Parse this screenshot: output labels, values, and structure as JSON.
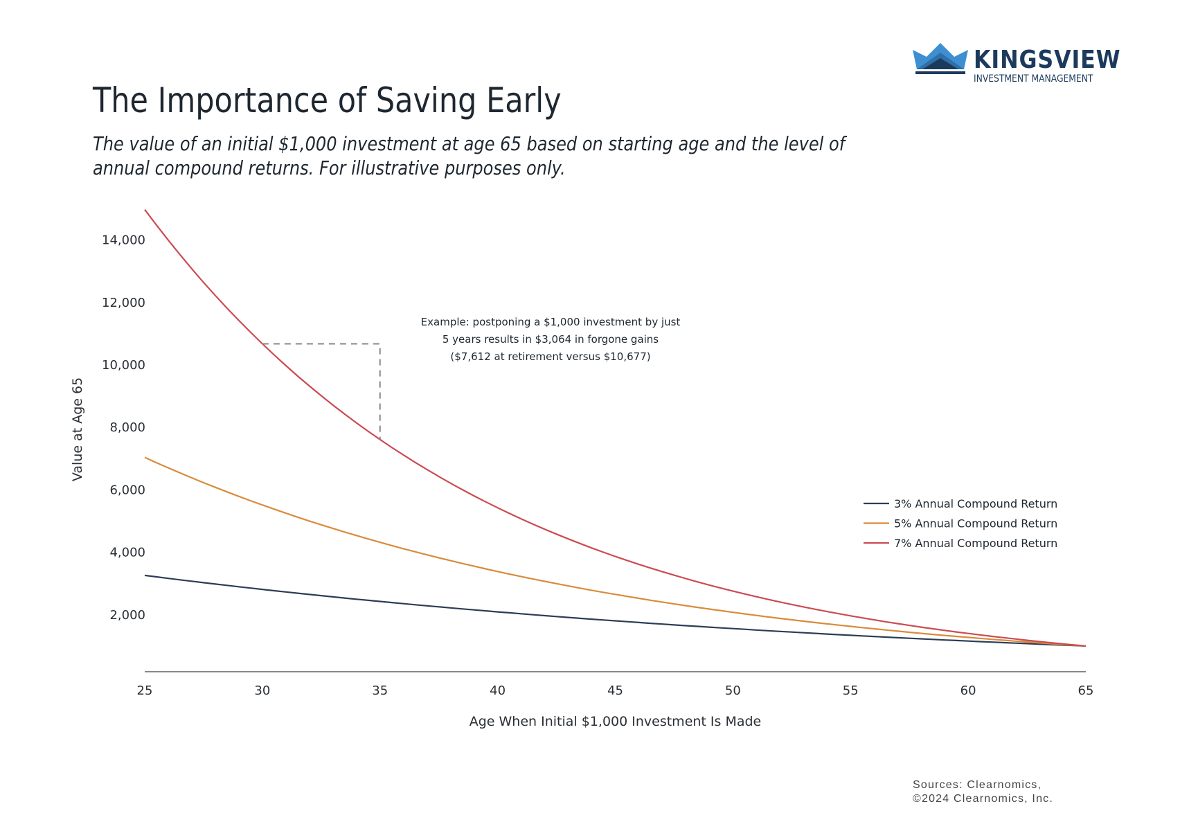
{
  "brand": {
    "name": "KINGSVIEW",
    "tagline": "INVESTMENT MANAGEMENT",
    "colors": {
      "dark": "#1b3a5c",
      "mid": "#2f6fa8",
      "light": "#3d8fd1"
    }
  },
  "header": {
    "title": "The Importance of Saving Early",
    "subtitle": "The value of an initial $1,000 investment at age 65 based on starting age and the level of annual compound returns. For illustrative purposes only."
  },
  "chart_data": {
    "type": "line",
    "title": "The Importance of Saving Early",
    "xlabel": "Age When Initial $1,000 Investment Is Made",
    "ylabel": "Value at Age 65",
    "xlim": [
      25,
      65
    ],
    "ylim": [
      0,
      15000
    ],
    "x_ticks": [
      25,
      30,
      35,
      40,
      45,
      50,
      55,
      60,
      65
    ],
    "y_ticks": [
      2000,
      4000,
      6000,
      8000,
      10000,
      12000,
      14000
    ],
    "y_tick_labels": [
      "2,000",
      "4,000",
      "6,000",
      "8,000",
      "10,000",
      "12,000",
      "14,000"
    ],
    "grid": false,
    "legend_position": "right",
    "x": [
      25,
      27,
      29,
      31,
      33,
      35,
      37,
      39,
      41,
      43,
      45,
      47,
      49,
      51,
      53,
      55,
      57,
      59,
      61,
      63,
      65
    ],
    "series": [
      {
        "name": "3% Annual Compound Return",
        "color": "#2c3e55",
        "values": [
          3262,
          3075,
          2898,
          2732,
          2575,
          2427,
          2288,
          2157,
          2033,
          1916,
          1806,
          1702,
          1605,
          1513,
          1426,
          1344,
          1267,
          1194,
          1126,
          1061,
          1000
        ]
      },
      {
        "name": "5% Annual Compound Return",
        "color": "#d98c3b",
        "values": [
          7040,
          6385,
          5792,
          5253,
          4765,
          4322,
          3920,
          3556,
          3225,
          2925,
          2653,
          2407,
          2183,
          1980,
          1796,
          1629,
          1477,
          1340,
          1216,
          1103,
          1000
        ]
      },
      {
        "name": "7% Annual Compound Return",
        "color": "#cc4b52",
        "values": [
          14974,
          13079,
          11424,
          9978,
          8715,
          7612,
          6649,
          5807,
          5072,
          4430,
          3870,
          3380,
          2952,
          2579,
          2252,
          1967,
          1718,
          1501,
          1311,
          1145,
          1000
        ]
      }
    ],
    "annotation": {
      "lines": [
        "Example: postponing a $1,000 investment by just",
        "5 years results in $3,064 in forgone gains",
        "($7,612 at retirement versus $10,677)"
      ],
      "from": {
        "x": 30,
        "y": 10677
      },
      "to": {
        "x": 35,
        "y": 7612
      }
    }
  },
  "footer": {
    "sources_line1": "Sources: Clearnomics,",
    "sources_line2": "©2024 Clearnomics, Inc."
  }
}
